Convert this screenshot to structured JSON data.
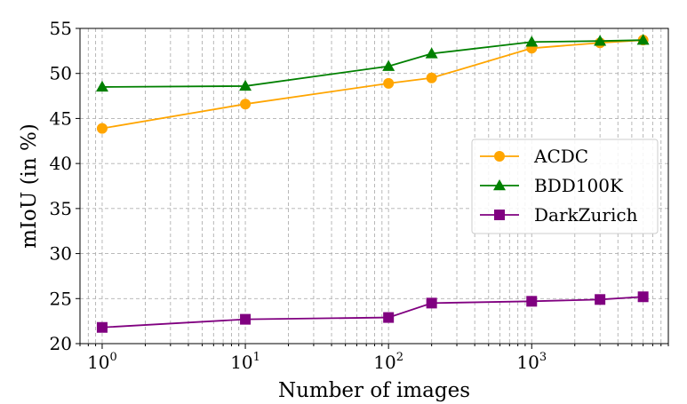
{
  "chart_data": {
    "type": "line",
    "xlabel": "Number of images",
    "ylabel": "mIoU (in %)",
    "x_scale": "log",
    "xlim": [
      0.7,
      9000
    ],
    "ylim": [
      20,
      55
    ],
    "x_ticks": [
      {
        "value": 1,
        "base": "10",
        "exp": "0"
      },
      {
        "value": 10,
        "base": "10",
        "exp": "1"
      },
      {
        "value": 100,
        "base": "10",
        "exp": "2"
      },
      {
        "value": 1000,
        "base": "10",
        "exp": "3"
      }
    ],
    "y_ticks": [
      "20",
      "25",
      "30",
      "35",
      "40",
      "45",
      "50",
      "55"
    ],
    "grid": true,
    "legend_position": "center-right",
    "x": [
      1,
      10,
      100,
      200,
      1000,
      3000,
      6000
    ],
    "series": [
      {
        "name": "ACDC",
        "color": "#ffa500",
        "marker": "circle",
        "values": [
          43.9,
          46.6,
          48.9,
          49.5,
          52.8,
          53.4,
          53.7
        ]
      },
      {
        "name": "BDD100K",
        "color": "#008000",
        "marker": "triangle",
        "values": [
          48.5,
          48.6,
          50.8,
          52.2,
          53.5,
          53.6,
          53.7
        ]
      },
      {
        "name": "DarkZurich",
        "color": "#800080",
        "marker": "square",
        "values": [
          21.8,
          22.7,
          22.9,
          24.5,
          24.7,
          24.9,
          25.2
        ]
      }
    ]
  }
}
